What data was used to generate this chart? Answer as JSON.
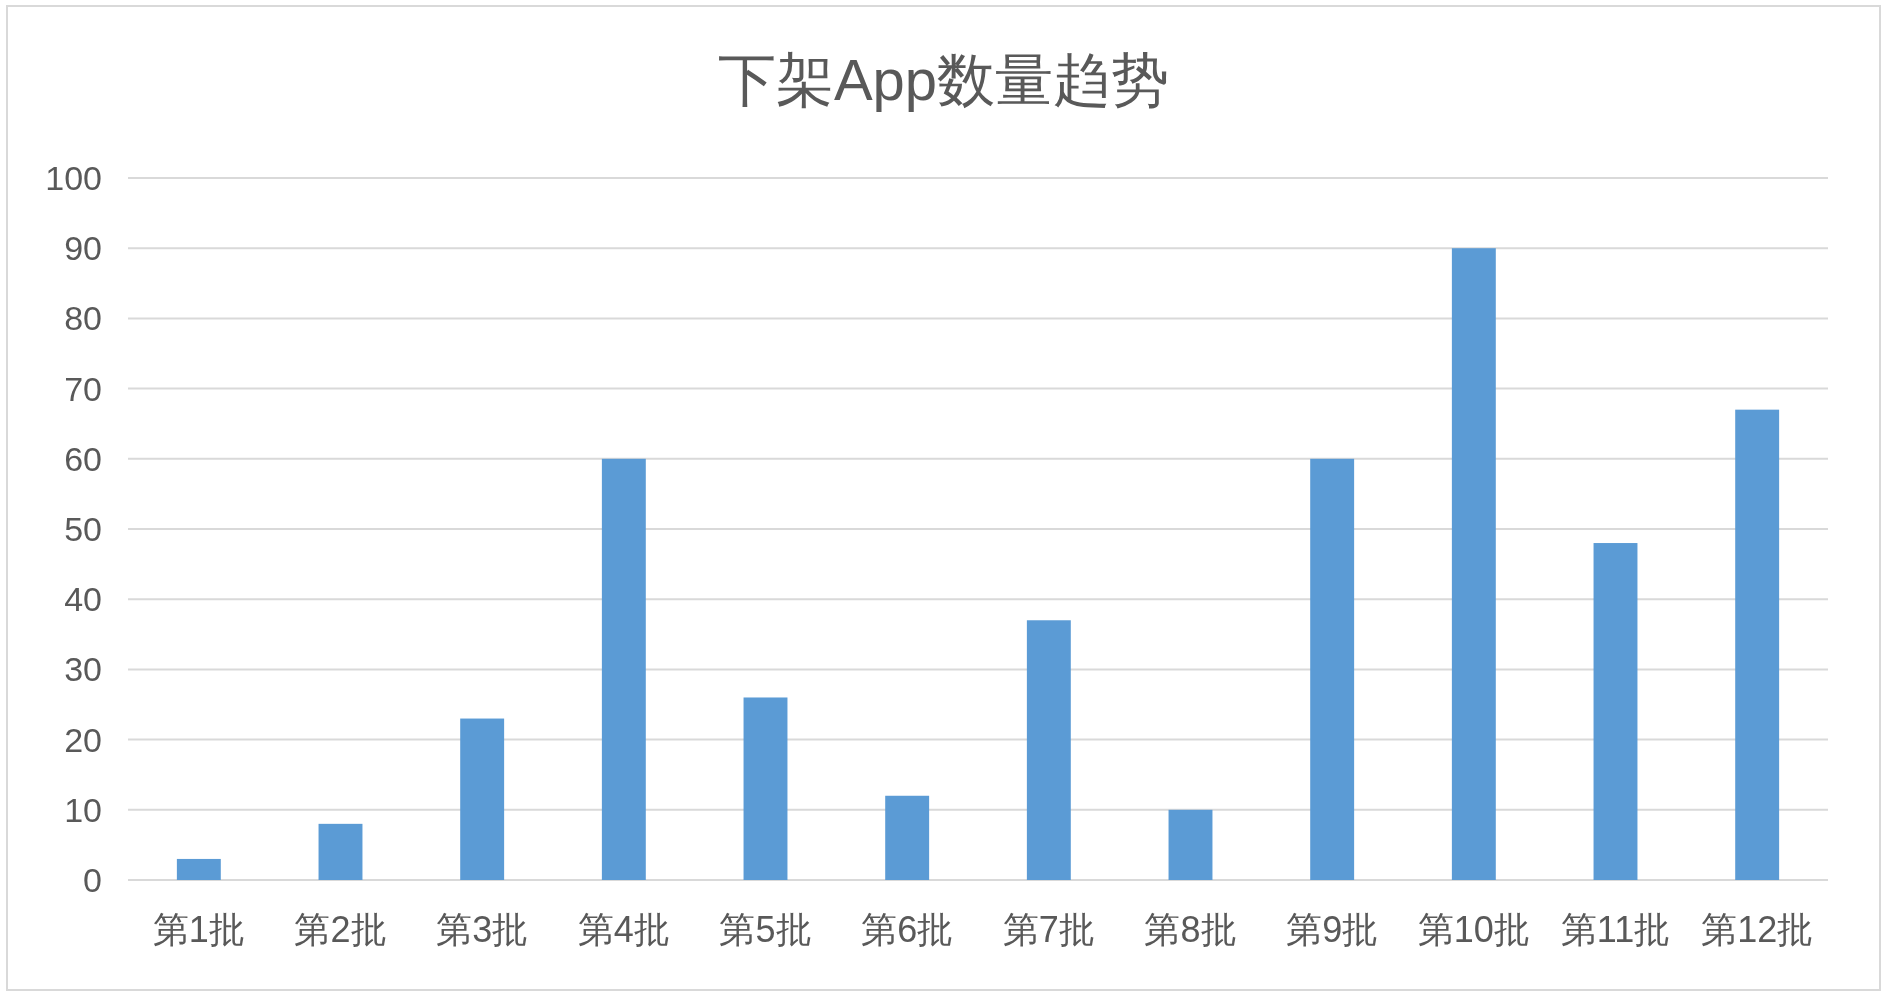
{
  "chart_data": {
    "type": "bar",
    "title": "下架App数量趋势",
    "categories": [
      "第1批",
      "第2批",
      "第3批",
      "第4批",
      "第5批",
      "第6批",
      "第7批",
      "第8批",
      "第9批",
      "第10批",
      "第11批",
      "第12批"
    ],
    "values": [
      3,
      8,
      23,
      60,
      26,
      12,
      37,
      10,
      60,
      90,
      48,
      67
    ],
    "color": "#5b9bd5",
    "ylim": [
      0,
      100
    ],
    "yticks": [
      0,
      10,
      20,
      30,
      40,
      50,
      60,
      70,
      80,
      90,
      100
    ],
    "grid": "y"
  }
}
